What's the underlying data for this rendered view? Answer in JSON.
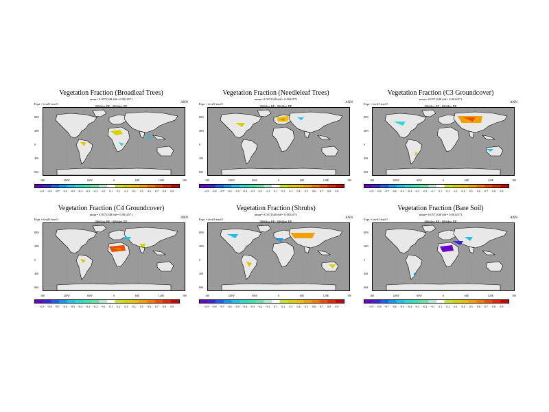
{
  "panels": [
    {
      "title": "Vegetation Fraction (Broadleaf Trees)",
      "stats": "mean= 0.0571348 diff= 0.0014571",
      "expt": "Expt = tevtO-teioO",
      "period": "0066kyr BP - 0066kyr BP",
      "season": "ANN"
    },
    {
      "title": "Vegetation Fraction (Needleleaf Trees)",
      "stats": "mean= 0.0571348 diff= 0.0014571",
      "expt": "Expt = tevtO-teioO",
      "period": "0066kyr BP - 0066kyr BP",
      "season": "ANN"
    },
    {
      "title": "Vegetation Fraction (C3 Groundcover)",
      "stats": "mean= 0.0571348 diff= 0.0014571",
      "expt": "Expt = tevtO-teioO",
      "period": "0066kyr BP - 0066kyr BP",
      "season": "ANN"
    },
    {
      "title": "Vegetation Fraction (C4 Groundcover)",
      "stats": "mean= 0.0571348 diff= 0.0014571",
      "expt": "Expt = tevtO-teioO",
      "period": "0066kyr BP - 0066kyr BP",
      "season": "ANN"
    },
    {
      "title": "Vegetation Fraction (Shrubs)",
      "stats": "mean= 0.0571348 diff= 0.0014571",
      "expt": "Expt = tevtO-teioO",
      "period": "0066kyr BP - 0066kyr BP",
      "season": "ANN"
    },
    {
      "title": "Vegetation Fraction (Bare Soil)",
      "stats": "mean= 0.0571348 diff= 0.0014571",
      "expt": "Expt = tevtO-teioO",
      "period": "0066kyr BP - 0066kyr BP",
      "season": "ANN"
    }
  ],
  "lat_labels": [
    "80N",
    "40N",
    "0",
    "40S",
    "80S"
  ],
  "lon_labels": [
    "180",
    "120W",
    "60W",
    "0",
    "60E",
    "120E",
    "180"
  ],
  "colorbar": {
    "labels": [
      "-0.9",
      "-0.8",
      "-0.7",
      "-0.6",
      "-0.5",
      "-0.4",
      "-0.3",
      "-0.2",
      "-0.1",
      "0.1",
      "0.2",
      "0.3",
      "0.4",
      "0.5",
      "0.6",
      "0.7",
      "0.8",
      "0.9"
    ],
    "colors": [
      "#6a00c8",
      "#3a28d8",
      "#2060e8",
      "#1098f0",
      "#20c0e8",
      "#30d8d0",
      "#40e0b0",
      "#70e0a0",
      "#b0e8d0",
      "#ffffff",
      "#c8e030",
      "#d8d000",
      "#e8c000",
      "#f0a000",
      "#f07800",
      "#e85000",
      "#e02800",
      "#c80000"
    ]
  },
  "colors": {
    "ocean": "#9a9a9a",
    "land": "#e8e8e8",
    "coast": "#000000"
  }
}
